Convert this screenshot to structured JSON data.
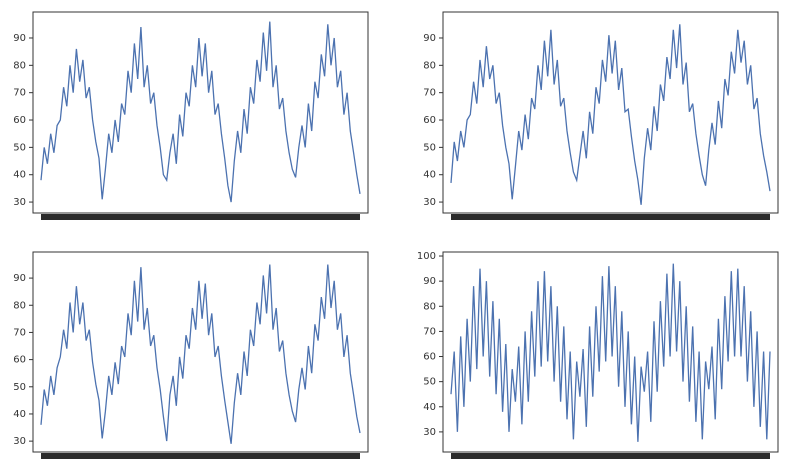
{
  "chart_data": [
    {
      "type": "line",
      "color": "#4c72b0",
      "ylim": [
        26,
        99.5
      ],
      "yticks": [
        30,
        40,
        50,
        60,
        70,
        80,
        90
      ],
      "values": [
        38,
        50,
        44,
        55,
        48,
        58,
        60,
        72,
        65,
        80,
        70,
        86,
        74,
        82,
        68,
        72,
        60,
        52,
        46,
        31,
        42,
        55,
        48,
        60,
        52,
        66,
        62,
        78,
        70,
        88,
        75,
        94,
        72,
        80,
        66,
        70,
        58,
        50,
        40,
        38,
        48,
        55,
        44,
        62,
        54,
        70,
        65,
        80,
        72,
        90,
        76,
        88,
        70,
        78,
        62,
        66,
        55,
        46,
        36,
        30,
        45,
        56,
        48,
        64,
        55,
        72,
        66,
        82,
        74,
        92,
        78,
        96,
        72,
        80,
        64,
        68,
        56,
        48,
        42,
        39,
        50,
        58,
        50,
        66,
        56,
        74,
        68,
        84,
        76,
        95,
        80,
        90,
        72,
        78,
        62,
        70,
        56,
        48,
        40,
        33
      ]
    },
    {
      "type": "line",
      "color": "#4c72b0",
      "ylim": [
        26,
        99.5
      ],
      "yticks": [
        30,
        40,
        50,
        60,
        70,
        80,
        90
      ],
      "values": [
        37,
        52,
        45,
        56,
        50,
        60,
        62,
        74,
        66,
        82,
        72,
        87,
        75,
        80,
        66,
        70,
        58,
        50,
        44,
        31,
        43,
        56,
        49,
        62,
        53,
        68,
        64,
        80,
        71,
        89,
        76,
        93,
        73,
        82,
        65,
        68,
        56,
        48,
        41,
        38,
        47,
        56,
        46,
        63,
        55,
        72,
        66,
        82,
        74,
        91,
        77,
        89,
        71,
        79,
        63,
        64,
        54,
        45,
        38,
        29,
        46,
        57,
        49,
        65,
        56,
        73,
        67,
        83,
        75,
        93,
        79,
        95,
        73,
        81,
        63,
        66,
        55,
        47,
        40,
        36,
        49,
        59,
        51,
        67,
        57,
        75,
        69,
        85,
        77,
        93,
        81,
        89,
        73,
        80,
        64,
        68,
        55,
        47,
        41,
        34
      ]
    },
    {
      "type": "line",
      "color": "#4c72b0",
      "ylim": [
        26,
        99.6
      ],
      "yticks": [
        30,
        40,
        50,
        60,
        70,
        80,
        90
      ],
      "values": [
        36,
        49,
        43,
        54,
        47,
        57,
        61,
        71,
        64,
        81,
        70,
        87,
        73,
        81,
        67,
        71,
        59,
        51,
        45,
        31,
        41,
        54,
        47,
        59,
        51,
        65,
        61,
        77,
        69,
        89,
        74,
        94,
        71,
        79,
        65,
        69,
        57,
        49,
        39,
        30,
        47,
        54,
        43,
        61,
        53,
        69,
        64,
        79,
        71,
        89,
        75,
        88,
        69,
        77,
        61,
        65,
        54,
        45,
        37,
        29,
        44,
        55,
        47,
        63,
        54,
        71,
        65,
        81,
        73,
        91,
        77,
        95,
        71,
        79,
        63,
        67,
        55,
        47,
        41,
        37,
        49,
        57,
        49,
        65,
        55,
        73,
        67,
        83,
        75,
        95,
        79,
        89,
        71,
        77,
        61,
        69,
        55,
        47,
        39,
        33
      ]
    },
    {
      "type": "line",
      "color": "#4c72b0",
      "ylim": [
        22,
        101.6
      ],
      "yticks": [
        30,
        40,
        50,
        60,
        70,
        80,
        90,
        100
      ],
      "values": [
        45,
        62,
        30,
        68,
        40,
        75,
        50,
        88,
        55,
        95,
        60,
        90,
        52,
        82,
        45,
        75,
        38,
        65,
        30,
        55,
        42,
        64,
        33,
        70,
        42,
        78,
        52,
        90,
        56,
        94,
        58,
        88,
        50,
        80,
        42,
        72,
        35,
        62,
        27,
        58,
        44,
        63,
        32,
        72,
        44,
        80,
        54,
        92,
        58,
        96,
        60,
        88,
        48,
        78,
        40,
        70,
        33,
        60,
        26,
        56,
        46,
        62,
        34,
        74,
        46,
        82,
        56,
        93,
        60,
        97,
        62,
        90,
        50,
        80,
        42,
        72,
        34,
        62,
        27,
        58,
        47,
        64,
        35,
        75,
        47,
        84,
        58,
        94,
        60,
        95,
        60,
        88,
        50,
        78,
        40,
        70,
        32,
        62,
        27,
        62
      ]
    }
  ]
}
